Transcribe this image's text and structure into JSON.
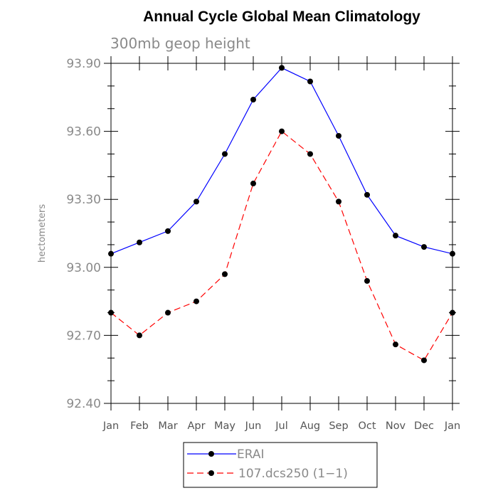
{
  "chart_data": {
    "type": "line",
    "title": "Annual Cycle Global Mean Climatology",
    "subtitle": "300mb geop height",
    "ylabel": "hectometers",
    "xlabel": "",
    "categories": [
      "Jan",
      "Feb",
      "Mar",
      "Apr",
      "May",
      "Jun",
      "Jul",
      "Aug",
      "Sep",
      "Oct",
      "Nov",
      "Dec",
      "Jan"
    ],
    "ylim": [
      92.4,
      93.9
    ],
    "yticks": [
      "92.40",
      "92.70",
      "93.00",
      "93.30",
      "93.60",
      "93.90"
    ],
    "grid": false,
    "legend_position": "bottom-center",
    "series": [
      {
        "name": "ERAI",
        "color": "#0000ff",
        "dash": "solid",
        "values": [
          93.06,
          93.11,
          93.16,
          93.29,
          93.5,
          93.74,
          93.88,
          93.82,
          93.58,
          93.32,
          93.14,
          93.09,
          93.06
        ]
      },
      {
        "name": "107.dcs250 (1−1)",
        "color": "#ff0000",
        "dash": "dashed",
        "values": [
          92.8,
          92.7,
          92.8,
          92.85,
          92.97,
          93.37,
          93.6,
          93.5,
          93.29,
          92.94,
          92.66,
          92.59,
          92.8
        ]
      }
    ]
  }
}
